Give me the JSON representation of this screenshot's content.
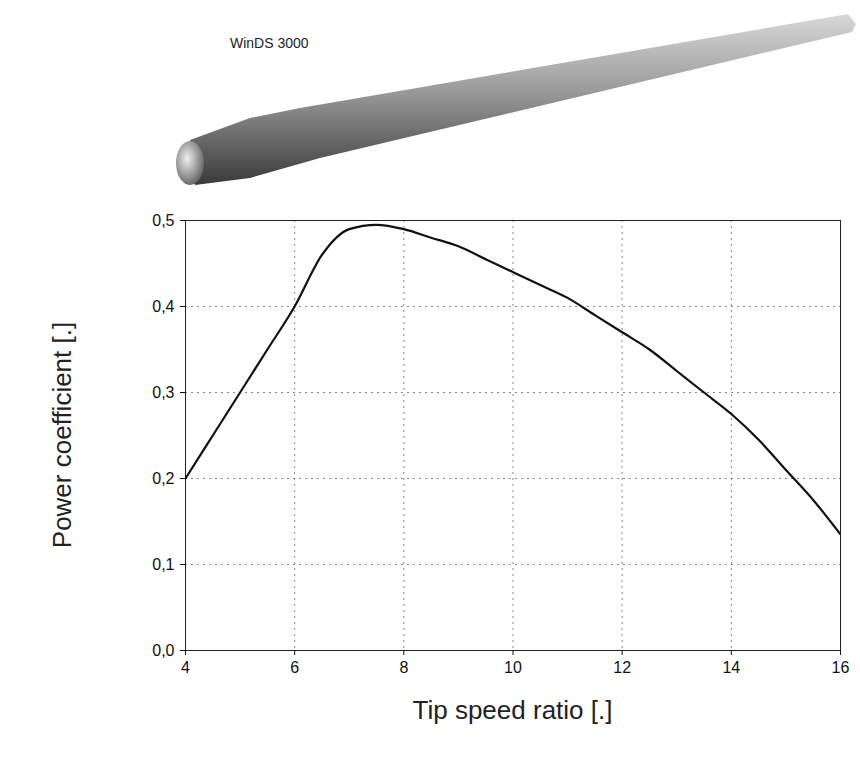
{
  "chart_data": {
    "type": "line",
    "title": "WinDS 3000",
    "xlabel": "Tip speed ratio [.]",
    "ylabel": "Power coefficient [.]",
    "x": [
      4,
      4.5,
      5,
      5.5,
      6,
      6.5,
      7,
      7.5,
      8,
      8.5,
      9,
      9.5,
      10,
      10.5,
      11,
      11.5,
      12,
      12.5,
      13,
      13.5,
      14,
      14.5,
      15,
      15.5,
      16
    ],
    "values": [
      0.2,
      0.25,
      0.3,
      0.35,
      0.4,
      0.46,
      0.49,
      0.495,
      0.49,
      0.48,
      0.47,
      0.455,
      0.44,
      0.425,
      0.41,
      0.39,
      0.37,
      0.35,
      0.325,
      0.3,
      0.275,
      0.245,
      0.21,
      0.175,
      0.135
    ],
    "color": "#111111",
    "line_style": "solid",
    "xlim": [
      4,
      16
    ],
    "xticks": [
      4,
      6,
      8,
      10,
      12,
      14,
      16
    ],
    "ylim": [
      0,
      0.5
    ],
    "yticks": [
      {
        "value": 0,
        "label": "0,0"
      },
      {
        "value": 0.1,
        "label": "0,1"
      },
      {
        "value": 0.2,
        "label": "0,2"
      },
      {
        "value": 0.3,
        "label": "0,3"
      },
      {
        "value": 0.4,
        "label": "0,4"
      },
      {
        "value": 0.5,
        "label": "0,5"
      }
    ],
    "grid": true
  }
}
